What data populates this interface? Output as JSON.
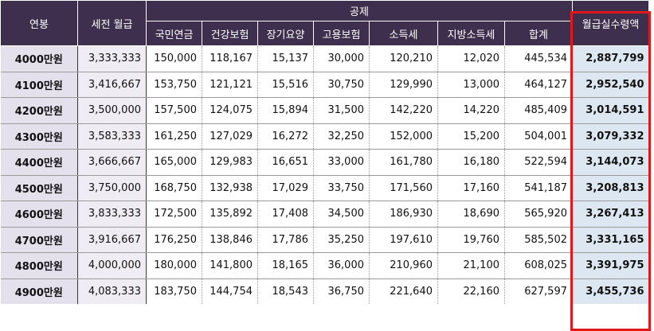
{
  "headers": {
    "annual": "연봉",
    "gross_monthly": "세전 월급",
    "deductions_group": "공제",
    "deduction_columns": [
      "국민연금",
      "건강보험",
      "장기요양",
      "고용보험",
      "소득세",
      "지방소득세",
      "합계"
    ],
    "net_monthly": "월급실수령액"
  },
  "rows": [
    {
      "annual": "4000만원",
      "gross": "3,333,333",
      "pension": "150,000",
      "health": "118,167",
      "ltc": "15,137",
      "employment": "30,000",
      "income_tax": "120,210",
      "local_tax": "12,020",
      "total": "445,534",
      "net": "2,887,799"
    },
    {
      "annual": "4100만원",
      "gross": "3,416,667",
      "pension": "153,750",
      "health": "121,121",
      "ltc": "15,516",
      "employment": "30,750",
      "income_tax": "129,990",
      "local_tax": "13,000",
      "total": "464,127",
      "net": "2,952,540"
    },
    {
      "annual": "4200만원",
      "gross": "3,500,000",
      "pension": "157,500",
      "health": "124,075",
      "ltc": "15,894",
      "employment": "31,500",
      "income_tax": "142,220",
      "local_tax": "14,220",
      "total": "485,409",
      "net": "3,014,591"
    },
    {
      "annual": "4300만원",
      "gross": "3,583,333",
      "pension": "161,250",
      "health": "127,029",
      "ltc": "16,272",
      "employment": "32,250",
      "income_tax": "152,000",
      "local_tax": "15,200",
      "total": "504,001",
      "net": "3,079,332"
    },
    {
      "annual": "4400만원",
      "gross": "3,666,667",
      "pension": "165,000",
      "health": "129,983",
      "ltc": "16,651",
      "employment": "33,000",
      "income_tax": "161,780",
      "local_tax": "16,180",
      "total": "522,594",
      "net": "3,144,073"
    },
    {
      "annual": "4500만원",
      "gross": "3,750,000",
      "pension": "168,750",
      "health": "132,938",
      "ltc": "17,029",
      "employment": "33,750",
      "income_tax": "171,560",
      "local_tax": "17,160",
      "total": "541,187",
      "net": "3,208,813"
    },
    {
      "annual": "4600만원",
      "gross": "3,833,333",
      "pension": "172,500",
      "health": "135,892",
      "ltc": "17,408",
      "employment": "34,500",
      "income_tax": "186,930",
      "local_tax": "18,690",
      "total": "565,920",
      "net": "3,267,413"
    },
    {
      "annual": "4700만원",
      "gross": "3,916,667",
      "pension": "176,250",
      "health": "138,846",
      "ltc": "17,786",
      "employment": "35,250",
      "income_tax": "197,610",
      "local_tax": "19,760",
      "total": "585,502",
      "net": "3,331,165"
    },
    {
      "annual": "4800만원",
      "gross": "4,000,000",
      "pension": "180,000",
      "health": "141,800",
      "ltc": "18,165",
      "employment": "36,000",
      "income_tax": "210,960",
      "local_tax": "21,100",
      "total": "608,025",
      "net": "3,391,975"
    },
    {
      "annual": "4900만원",
      "gross": "4,083,333",
      "pension": "183,750",
      "health": "144,754",
      "ltc": "18,543",
      "employment": "36,750",
      "income_tax": "221,640",
      "local_tax": "22,160",
      "total": "627,597",
      "net": "3,455,736"
    }
  ],
  "colors": {
    "header_bg": "#3d2f4d",
    "annual_col_bg": "#e4e0ec",
    "net_col_bg": "#dde7f1",
    "highlight_border": "#e0171b"
  }
}
